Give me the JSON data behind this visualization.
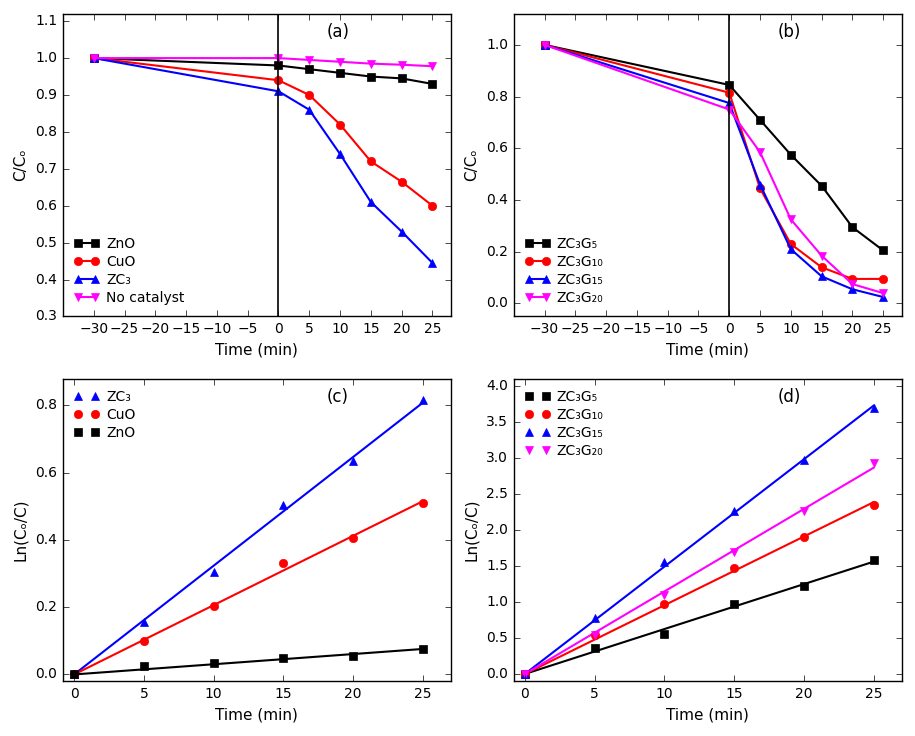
{
  "panel_a": {
    "title": "(a)",
    "xlabel": "Time (min)",
    "ylabel": "C/Cₒ",
    "xlim": [
      -35,
      28
    ],
    "ylim": [
      0.3,
      1.12
    ],
    "xticks": [
      -30,
      -25,
      -20,
      -15,
      -10,
      -5,
      0,
      5,
      10,
      15,
      20,
      25
    ],
    "yticks": [
      0.3,
      0.4,
      0.5,
      0.6,
      0.7,
      0.8,
      0.9,
      1.0,
      1.1
    ],
    "vline": 0,
    "series": [
      {
        "label": "ZnO",
        "color": "#000000",
        "marker": "s",
        "x": [
          -30,
          0,
          5,
          10,
          15,
          20,
          25
        ],
        "y": [
          1.0,
          0.98,
          0.97,
          0.96,
          0.95,
          0.945,
          0.93
        ]
      },
      {
        "label": "CuO",
        "color": "#ff0000",
        "marker": "o",
        "x": [
          -30,
          0,
          5,
          10,
          15,
          20,
          25
        ],
        "y": [
          1.0,
          0.94,
          0.9,
          0.82,
          0.72,
          0.665,
          0.6
        ]
      },
      {
        "label": "ZC₃",
        "color": "#0000ff",
        "marker": "^",
        "x": [
          -30,
          0,
          5,
          10,
          15,
          20,
          25
        ],
        "y": [
          1.0,
          0.91,
          0.86,
          0.74,
          0.61,
          0.53,
          0.445
        ]
      },
      {
        "label": "No catalyst",
        "color": "#ff00ff",
        "marker": "v",
        "x": [
          -30,
          0,
          5,
          10,
          15,
          20,
          25
        ],
        "y": [
          1.0,
          1.0,
          0.995,
          0.99,
          0.985,
          0.982,
          0.978
        ]
      }
    ]
  },
  "panel_b": {
    "title": "(b)",
    "xlabel": "Time (min)",
    "ylabel": "C/Cₒ",
    "xlim": [
      -35,
      28
    ],
    "ylim": [
      -0.05,
      1.12
    ],
    "xticks": [
      -30,
      -25,
      -20,
      -15,
      -10,
      -5,
      0,
      5,
      10,
      15,
      20,
      25
    ],
    "yticks": [
      0.0,
      0.2,
      0.4,
      0.6,
      0.8,
      1.0
    ],
    "vline": 0,
    "series": [
      {
        "label": "ZC₃G₅",
        "color": "#000000",
        "marker": "s",
        "x": [
          -30,
          0,
          5,
          10,
          15,
          20,
          25
        ],
        "y": [
          1.0,
          0.845,
          0.71,
          0.575,
          0.455,
          0.295,
          0.205
        ]
      },
      {
        "label": "ZC₃G₁₀",
        "color": "#ff0000",
        "marker": "o",
        "x": [
          -30,
          0,
          5,
          10,
          15,
          20,
          25
        ],
        "y": [
          1.0,
          0.815,
          0.445,
          0.23,
          0.14,
          0.095,
          0.095
        ]
      },
      {
        "label": "ZC₃G₁₅",
        "color": "#0000ff",
        "marker": "^",
        "x": [
          -30,
          0,
          5,
          10,
          15,
          20,
          25
        ],
        "y": [
          1.0,
          0.775,
          0.46,
          0.21,
          0.105,
          0.055,
          0.025
        ]
      },
      {
        "label": "ZC₃G₂₀",
        "color": "#ff00ff",
        "marker": "v",
        "x": [
          -30,
          0,
          5,
          10,
          15,
          20,
          25
        ],
        "y": [
          1.0,
          0.75,
          0.585,
          0.325,
          0.185,
          0.075,
          0.04
        ]
      }
    ]
  },
  "panel_c": {
    "title": "(c)",
    "xlabel": "Time (min)",
    "ylabel": "Ln(Cₒ/C)",
    "xlim": [
      -0.8,
      27
    ],
    "ylim": [
      -0.02,
      0.88
    ],
    "xticks": [
      0,
      5,
      10,
      15,
      20,
      25
    ],
    "yticks": [
      0.0,
      0.2,
      0.4,
      0.6,
      0.8
    ],
    "series": [
      {
        "label": "ZC₃",
        "color": "#0000ff",
        "marker": "^",
        "x": [
          0,
          5,
          10,
          15,
          20,
          25
        ],
        "y": [
          0.0,
          0.155,
          0.305,
          0.505,
          0.635,
          0.815
        ]
      },
      {
        "label": "CuO",
        "color": "#ff0000",
        "marker": "o",
        "x": [
          0,
          5,
          10,
          15,
          20,
          25
        ],
        "y": [
          0.0,
          0.1,
          0.205,
          0.33,
          0.405,
          0.51
        ]
      },
      {
        "label": "ZnO",
        "color": "#000000",
        "marker": "s",
        "x": [
          0,
          5,
          10,
          15,
          20,
          25
        ],
        "y": [
          0.0,
          0.025,
          0.035,
          0.048,
          0.055,
          0.075
        ]
      }
    ]
  },
  "panel_d": {
    "title": "(d)",
    "xlabel": "Time (min)",
    "ylabel": "Ln(Cₒ/C)",
    "xlim": [
      -0.8,
      27
    ],
    "ylim": [
      -0.1,
      4.1
    ],
    "xticks": [
      0,
      5,
      10,
      15,
      20,
      25
    ],
    "yticks": [
      0.0,
      0.5,
      1.0,
      1.5,
      2.0,
      2.5,
      3.0,
      3.5,
      4.0
    ],
    "series": [
      {
        "label": "ZC₃G₅",
        "color": "#000000",
        "marker": "s",
        "x": [
          0,
          5,
          10,
          15,
          20,
          25
        ],
        "y": [
          0.0,
          0.36,
          0.55,
          0.97,
          1.22,
          1.58
        ]
      },
      {
        "label": "ZC₃G₁₀",
        "color": "#ff0000",
        "marker": "o",
        "x": [
          0,
          5,
          10,
          15,
          20,
          25
        ],
        "y": [
          0.0,
          0.54,
          0.97,
          1.47,
          1.9,
          2.35
        ]
      },
      {
        "label": "ZC₃G₁₅",
        "color": "#0000ff",
        "marker": "^",
        "x": [
          0,
          5,
          10,
          15,
          20,
          25
        ],
        "y": [
          0.0,
          0.77,
          1.55,
          2.26,
          2.97,
          3.69
        ]
      },
      {
        "label": "ZC₃G₂₀",
        "color": "#ff00ff",
        "marker": "v",
        "x": [
          0,
          5,
          10,
          15,
          20,
          25
        ],
        "y": [
          0.0,
          0.54,
          1.1,
          1.69,
          2.26,
          2.93
        ]
      }
    ]
  }
}
